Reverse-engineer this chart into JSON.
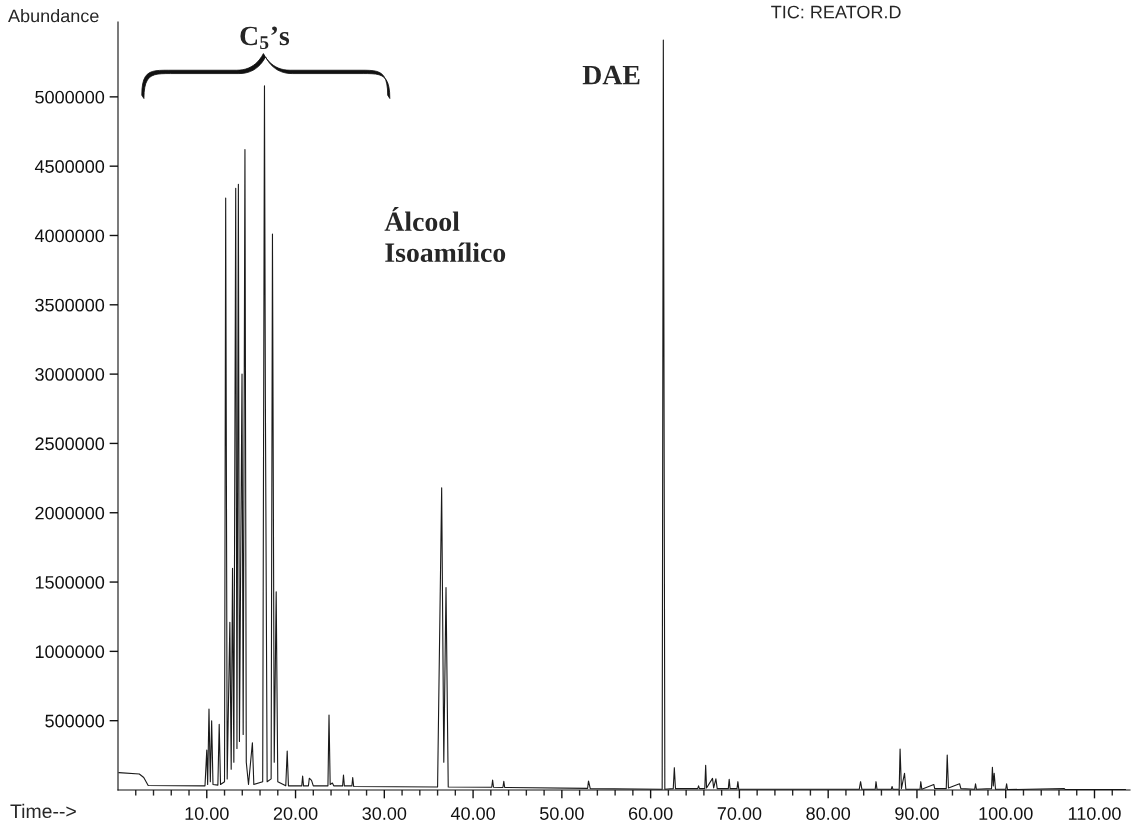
{
  "chart_data": {
    "type": "line",
    "title": "TIC: REATOR.D",
    "xlabel": "Time-->",
    "ylabel": "Abundance",
    "annotations": [
      "C$_{5}$’s",
      "DAE",
      "Álcool\nIsoamílico"
    ],
    "series": [
      {
        "color": "#1a1a1a",
        "x": [
          0.1,
          2.4,
          2.9,
          3.4,
          9.8,
          10.0,
          10.1,
          10.25,
          10.4,
          10.55,
          10.7,
          11.25,
          11.4,
          11.55,
          12.0,
          12.13,
          12.3,
          12.6,
          12.75,
          12.9,
          13.05,
          13.26,
          13.4,
          13.56,
          13.68,
          13.97,
          14.1,
          14.3,
          14.45,
          14.7,
          15.14,
          15.3,
          16.3,
          16.5,
          16.6,
          16.8,
          17.25,
          17.4,
          17.6,
          17.82,
          18.0,
          18.9,
          19.06,
          19.2,
          20.7,
          20.8,
          20.9,
          21.45,
          21.55,
          21.8,
          22.0,
          23.65,
          23.77,
          23.9,
          24.15,
          24.3,
          25.3,
          25.4,
          25.5,
          26.35,
          26.44,
          26.55,
          36.0,
          36.46,
          36.7,
          36.95,
          37.2,
          42.1,
          42.2,
          42.3,
          43.36,
          43.46,
          43.56,
          52.9,
          53.0,
          53.2,
          61.3,
          61.43,
          61.6,
          62.55,
          62.67,
          62.8,
          65.3,
          65.4,
          65.5,
          66.1,
          66.2,
          66.3,
          66.97,
          67.1,
          67.35,
          67.5,
          68.75,
          68.85,
          68.95,
          69.73,
          69.83,
          69.93,
          83.5,
          83.65,
          83.8,
          85.3,
          85.39,
          85.5,
          87.1,
          87.2,
          87.3,
          88.0,
          88.1,
          88.25,
          88.6,
          88.75,
          90.35,
          90.43,
          90.55,
          91.9,
          92.0,
          93.3,
          93.41,
          93.55,
          94.8,
          94.95,
          96.5,
          96.6,
          96.7,
          98.4,
          98.5,
          98.6,
          98.7,
          98.85,
          100.0,
          100.1,
          100.2,
          106.6,
          106.7,
          113.5
        ],
        "values": [
          125000,
          115000,
          90000,
          32000,
          30000,
          288000,
          40000,
          584000,
          60000,
          500000,
          40000,
          35000,
          473000,
          40000,
          60000,
          4270000,
          80000,
          1210000,
          150000,
          1600000,
          200000,
          4340000,
          300000,
          4370000,
          350000,
          3000000,
          400000,
          4620000,
          200000,
          40000,
          341000,
          40000,
          60000,
          5080000,
          2840000,
          60000,
          80000,
          4010000,
          200000,
          1430000,
          60000,
          30000,
          281000,
          30000,
          30000,
          100000,
          30000,
          30000,
          85000,
          70000,
          30000,
          30000,
          541000,
          40000,
          50000,
          30000,
          30000,
          108000,
          30000,
          30000,
          90000,
          25000,
          22000,
          2180000,
          200000,
          1460000,
          22000,
          20000,
          72000,
          20000,
          18000,
          62000,
          18000,
          12000,
          65000,
          10000,
          5000,
          5410000,
          5000,
          10000,
          161000,
          10000,
          10000,
          30000,
          10000,
          10000,
          178000,
          15000,
          84000,
          15000,
          80000,
          10000,
          10000,
          77000,
          10000,
          10000,
          60000,
          5000,
          5000,
          60000,
          5000,
          5000,
          60000,
          5000,
          5000,
          25000,
          5000,
          5000,
          296000,
          10000,
          120000,
          5000,
          5000,
          60000,
          5000,
          40000,
          10000,
          10000,
          252000,
          15000,
          45000,
          10000,
          5000,
          45000,
          5000,
          10000,
          164000,
          30000,
          120000,
          5000,
          5000,
          45000,
          3000,
          10000,
          3000,
          3000
        ]
      }
    ],
    "xlim": [
      0,
      114
    ],
    "ylim": [
      0,
      5540000
    ],
    "xticks": [
      {
        "value": 2,
        "label": null
      },
      {
        "value": 4,
        "label": null
      },
      {
        "value": 6,
        "label": null
      },
      {
        "value": 8,
        "label": null
      },
      {
        "value": 10,
        "label": "10.00"
      },
      {
        "value": 12,
        "label": null
      },
      {
        "value": 14,
        "label": null
      },
      {
        "value": 16,
        "label": null
      },
      {
        "value": 18,
        "label": null
      },
      {
        "value": 20,
        "label": "20.00"
      },
      {
        "value": 22,
        "label": null
      },
      {
        "value": 24,
        "label": null
      },
      {
        "value": 26,
        "label": null
      },
      {
        "value": 28,
        "label": null
      },
      {
        "value": 30,
        "label": "30.00"
      },
      {
        "value": 32,
        "label": null
      },
      {
        "value": 34,
        "label": null
      },
      {
        "value": 36,
        "label": null
      },
      {
        "value": 38,
        "label": null
      },
      {
        "value": 40,
        "label": "40.00"
      },
      {
        "value": 42,
        "label": null
      },
      {
        "value": 44,
        "label": null
      },
      {
        "value": 46,
        "label": null
      },
      {
        "value": 48,
        "label": null
      },
      {
        "value": 50,
        "label": "50.00"
      },
      {
        "value": 52,
        "label": null
      },
      {
        "value": 54,
        "label": null
      },
      {
        "value": 56,
        "label": null
      },
      {
        "value": 58,
        "label": null
      },
      {
        "value": 60,
        "label": "60.00"
      },
      {
        "value": 62,
        "label": null
      },
      {
        "value": 64,
        "label": null
      },
      {
        "value": 66,
        "label": null
      },
      {
        "value": 68,
        "label": null
      },
      {
        "value": 70,
        "label": "70.00"
      },
      {
        "value": 72,
        "label": null
      },
      {
        "value": 74,
        "label": null
      },
      {
        "value": 76,
        "label": null
      },
      {
        "value": 78,
        "label": null
      },
      {
        "value": 80,
        "label": "80.00"
      },
      {
        "value": 82,
        "label": null
      },
      {
        "value": 84,
        "label": null
      },
      {
        "value": 86,
        "label": null
      },
      {
        "value": 88,
        "label": null
      },
      {
        "value": 90,
        "label": "90.00"
      },
      {
        "value": 92,
        "label": null
      },
      {
        "value": 94,
        "label": null
      },
      {
        "value": 96,
        "label": null
      },
      {
        "value": 98,
        "label": null
      },
      {
        "value": 100,
        "label": "100.00"
      },
      {
        "value": 102,
        "label": null
      },
      {
        "value": 104,
        "label": null
      },
      {
        "value": 106,
        "label": null
      },
      {
        "value": 108,
        "label": null
      },
      {
        "value": 110,
        "label": "110.00"
      },
      {
        "value": 112,
        "label": null
      }
    ],
    "yticks": [
      500000,
      1000000,
      1500000,
      2000000,
      2500000,
      3000000,
      3500000,
      4000000,
      4500000,
      5000000
    ],
    "grid": false,
    "legend": false,
    "marker": "none",
    "line_style": "solid"
  }
}
